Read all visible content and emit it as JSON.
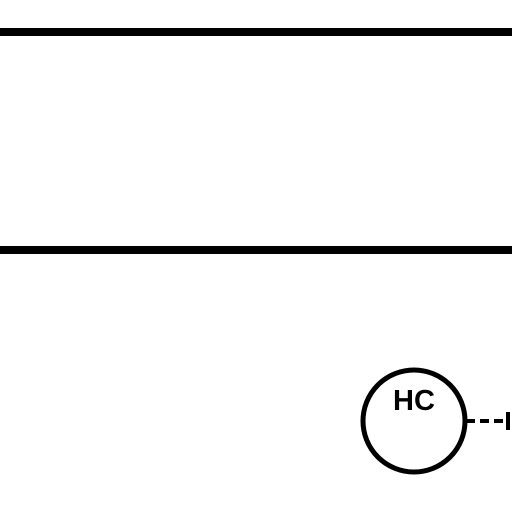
{
  "diagram": {
    "node": {
      "label": "HC"
    },
    "colors": {
      "line": "#000000",
      "background": "#ffffff"
    }
  }
}
